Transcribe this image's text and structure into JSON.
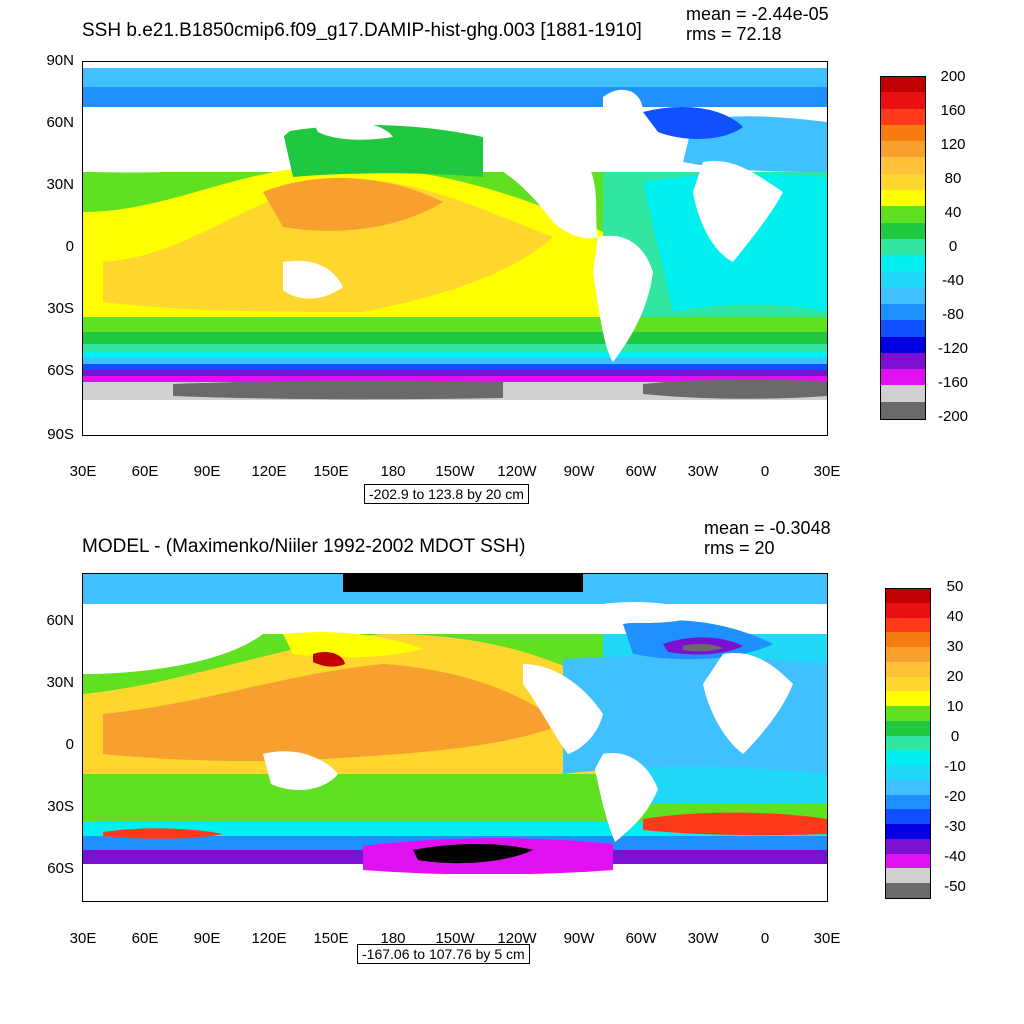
{
  "top": {
    "title": "SSH b.e21.B1850cmip6.f09_g17.DAMIP-hist-ghg.003 [1881-1910]",
    "mean": "mean = -2.44e-05",
    "rms": "rms = 72.18",
    "range": "-202.9 to 123.8 by 20 cm",
    "lat_labels": [
      "90N",
      "60N",
      "30N",
      "0",
      "30S",
      "60S",
      "90S"
    ],
    "lon_labels": [
      "30E",
      "60E",
      "90E",
      "120E",
      "150E",
      "180",
      "150W",
      "120W",
      "90W",
      "60W",
      "30W",
      "0",
      "30E"
    ],
    "colorbar_labels": [
      "200",
      "160",
      "120",
      "80",
      "40",
      "0",
      "-40",
      "-80",
      "-120",
      "-160",
      "-200"
    ],
    "colorbar_colors": [
      "#c00000",
      "#e81010",
      "#ff3a1a",
      "#f57d10",
      "#f7a030",
      "#ffc23a",
      "#ffd62e",
      "#ffff00",
      "#5fe020",
      "#20c840",
      "#30e6a0",
      "#00f0f0",
      "#20d8f8",
      "#40c0ff",
      "#1e90ff",
      "#1050ff",
      "#0000e0",
      "#7b10d0",
      "#e010f0",
      "#d0d0d0",
      "#6a6a6a"
    ]
  },
  "bottom": {
    "title": "MODEL - (Maximenko/Niiler 1992-2002 MDOT SSH)",
    "mean": "mean = -0.3048",
    "rms": "rms = 20",
    "range": "-167.06 to 107.76 by 5 cm",
    "lat_labels": [
      "60N",
      "30N",
      "0",
      "30S",
      "60S"
    ],
    "lon_labels": [
      "30E",
      "60E",
      "90E",
      "120E",
      "150E",
      "180",
      "150W",
      "120W",
      "90W",
      "60W",
      "30W",
      "0",
      "30E"
    ],
    "colorbar_labels": [
      "50",
      "40",
      "30",
      "20",
      "10",
      "0",
      "-10",
      "-20",
      "-30",
      "-40",
      "-50"
    ],
    "colorbar_colors": [
      "#c00000",
      "#e81010",
      "#ff3a1a",
      "#f57d10",
      "#f7a030",
      "#ffc23a",
      "#ffd62e",
      "#ffff00",
      "#5fe020",
      "#20c840",
      "#30e6a0",
      "#00f0f0",
      "#20d8f8",
      "#40c0ff",
      "#1e90ff",
      "#1050ff",
      "#0000e0",
      "#7b10d0",
      "#e010f0",
      "#d0d0d0",
      "#6a6a6a"
    ]
  }
}
